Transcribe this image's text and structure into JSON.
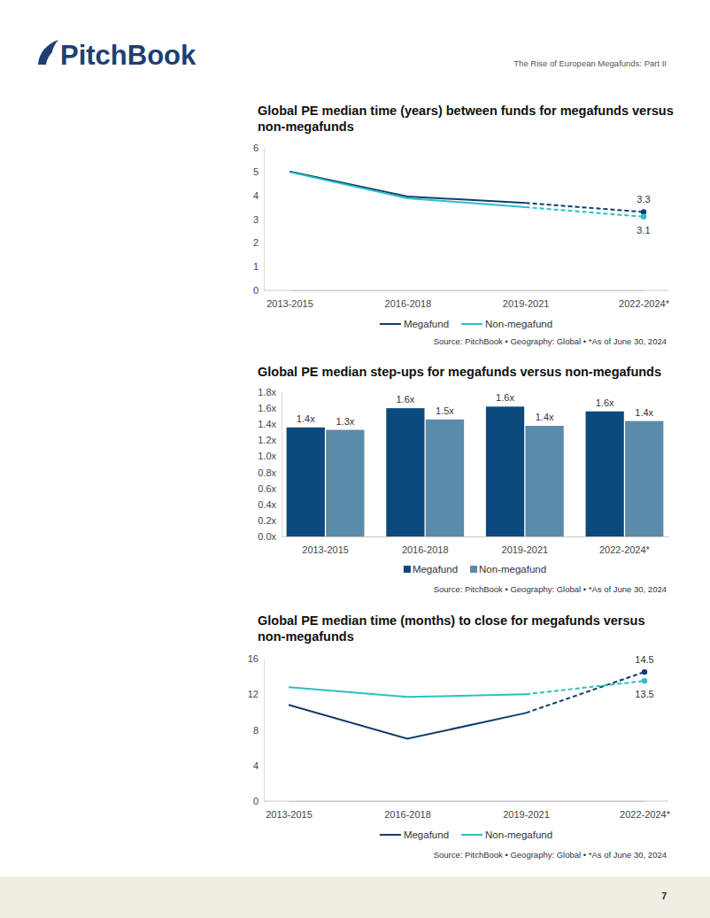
{
  "page": {
    "logo": "PitchBook",
    "report_title": "The Rise of European Megafunds: Part II",
    "page_number": "7"
  },
  "chart_data": [
    {
      "type": "line",
      "title": "Global PE median time (years) between funds for megafunds versus non-megafunds",
      "categories": [
        "2013-2015",
        "2016-2018",
        "2019-2021",
        "2022-2024*"
      ],
      "series": [
        {
          "name": "Megafund",
          "color": "#0f3e6b",
          "values": [
            5.0,
            3.95,
            3.68,
            3.3
          ],
          "value_labels": [
            null,
            null,
            null,
            "3.3"
          ],
          "line_style": "dashed-last",
          "marker": "circle-last"
        },
        {
          "name": "Non-megafund",
          "color": "#2bbfc6",
          "values": [
            4.98,
            3.88,
            3.5,
            3.1
          ],
          "value_labels": [
            null,
            null,
            null,
            "3.1"
          ],
          "line_style": "dashed-last",
          "marker": "circle-last"
        }
      ],
      "ylim": [
        0,
        6
      ],
      "yticks": [
        0,
        1,
        2,
        3,
        4,
        5,
        6
      ],
      "grid": false,
      "legend": "bottom",
      "data_labels": true,
      "source": "Source: PitchBook • Geography: Global • *As of June 30, 2024"
    },
    {
      "type": "bar",
      "title": "Global PE median step-ups for megafunds versus non-megafunds",
      "categories": [
        "2013-2015",
        "2016-2018",
        "2019-2021",
        "2022-2024*"
      ],
      "series": [
        {
          "name": "Megafund",
          "color": "#0c4a7d",
          "values": [
            1.36,
            1.6,
            1.62,
            1.56
          ],
          "value_labels": [
            "1.4x",
            "1.6x",
            "1.6x",
            "1.6x"
          ]
        },
        {
          "name": "Non-megafund",
          "color": "#5b8bab",
          "values": [
            1.33,
            1.46,
            1.38,
            1.44
          ],
          "value_labels": [
            "1.3x",
            "1.5x",
            "1.4x",
            "1.4x"
          ]
        }
      ],
      "ylim": [
        0,
        1.8
      ],
      "yticks": [
        {
          "value": 0,
          "label": "0.0x"
        },
        {
          "value": 0.2,
          "label": "0.2x"
        },
        {
          "value": 0.4,
          "label": "0.4x"
        },
        {
          "value": 0.6,
          "label": "0.6x"
        },
        {
          "value": 0.8,
          "label": "0.8x"
        },
        {
          "value": 1.0,
          "label": "1.0x"
        },
        {
          "value": 1.2,
          "label": "1.2x"
        },
        {
          "value": 1.4,
          "label": "1.4x"
        },
        {
          "value": 1.6,
          "label": "1.6x"
        },
        {
          "value": 1.8,
          "label": "1.8x"
        }
      ],
      "grid": false,
      "legend": "bottom",
      "data_labels": true,
      "source": "Source: PitchBook • Geography: Global • *As of June 30, 2024"
    },
    {
      "type": "line",
      "title": "Global PE median time (months) to close for megafunds versus non-megafunds",
      "categories": [
        "2013-2015",
        "2016-2018",
        "2019-2021",
        "2022-2024*"
      ],
      "series": [
        {
          "name": "Megafund",
          "color": "#0f3e6b",
          "values": [
            10.8,
            7.0,
            9.9,
            14.5
          ],
          "value_labels": [
            null,
            null,
            null,
            "14.5"
          ],
          "line_style": "dashed-last",
          "marker": "circle-last"
        },
        {
          "name": "Non-megafund",
          "color": "#2bbfc6",
          "values": [
            12.8,
            11.7,
            12.0,
            13.5
          ],
          "value_labels": [
            null,
            null,
            null,
            "13.5"
          ],
          "line_style": "dashed-last",
          "marker": "circle-last"
        }
      ],
      "ylim": [
        0,
        16
      ],
      "yticks": [
        0,
        4,
        8,
        12,
        16
      ],
      "grid": false,
      "legend": "bottom",
      "data_labels": true,
      "source": "Source: PitchBook • Geography: Global • *As of June 30, 2024"
    }
  ]
}
